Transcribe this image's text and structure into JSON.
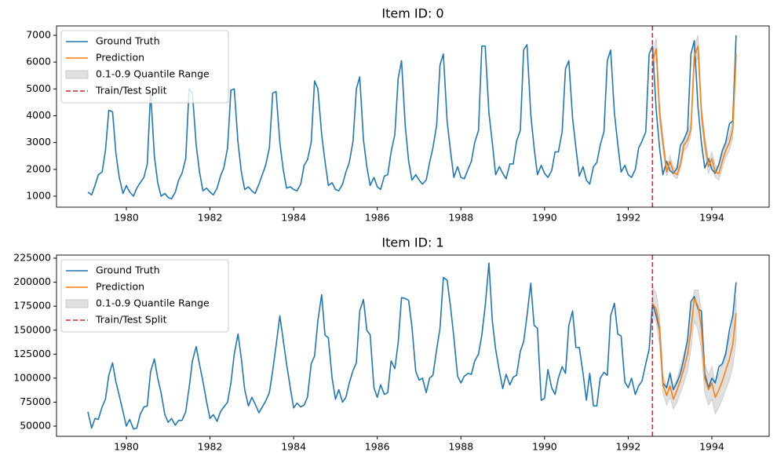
{
  "chart_data": [
    {
      "type": "line",
      "title": "Item ID: 0",
      "legend": "upper left",
      "xlim": [
        1978.33,
        1995.37
      ],
      "ylim": [
        590,
        7350
      ],
      "xticks": [
        1980,
        1982,
        1984,
        1986,
        1988,
        1990,
        1992,
        1994
      ],
      "yticks": [
        1000,
        2000,
        3000,
        4000,
        5000,
        6000,
        7000
      ],
      "x": [
        1979.08,
        1979.17,
        1979.25,
        1979.33,
        1979.42,
        1979.5,
        1979.58,
        1979.67,
        1979.75,
        1979.83,
        1979.92,
        1980,
        1980.08,
        1980.17,
        1980.25,
        1980.33,
        1980.42,
        1980.5,
        1980.58,
        1980.67,
        1980.75,
        1980.83,
        1980.92,
        1981,
        1981.08,
        1981.17,
        1981.25,
        1981.33,
        1981.42,
        1981.5,
        1981.58,
        1981.67,
        1981.75,
        1981.83,
        1981.92,
        1982,
        1982.08,
        1982.17,
        1982.25,
        1982.33,
        1982.42,
        1982.5,
        1982.58,
        1982.67,
        1982.75,
        1982.83,
        1982.92,
        1983,
        1983.08,
        1983.17,
        1983.25,
        1983.33,
        1983.42,
        1983.5,
        1983.58,
        1983.67,
        1983.75,
        1983.83,
        1983.92,
        1984,
        1984.08,
        1984.17,
        1984.25,
        1984.33,
        1984.42,
        1984.5,
        1984.58,
        1984.67,
        1984.75,
        1984.83,
        1984.92,
        1985,
        1985.08,
        1985.17,
        1985.25,
        1985.33,
        1985.42,
        1985.5,
        1985.58,
        1985.67,
        1985.75,
        1985.83,
        1985.92,
        1986,
        1986.08,
        1986.17,
        1986.25,
        1986.33,
        1986.42,
        1986.5,
        1986.58,
        1986.67,
        1986.75,
        1986.83,
        1986.92,
        1987,
        1987.08,
        1987.17,
        1987.25,
        1987.33,
        1987.42,
        1987.5,
        1987.58,
        1987.67,
        1987.75,
        1987.83,
        1987.92,
        1988,
        1988.08,
        1988.17,
        1988.25,
        1988.33,
        1988.42,
        1988.5,
        1988.58,
        1988.67,
        1988.75,
        1988.83,
        1988.92,
        1989,
        1989.08,
        1989.17,
        1989.25,
        1989.33,
        1989.42,
        1989.5,
        1989.58,
        1989.67,
        1989.75,
        1989.83,
        1989.92,
        1990,
        1990.08,
        1990.17,
        1990.25,
        1990.33,
        1990.42,
        1990.5,
        1990.58,
        1990.67,
        1990.75,
        1990.83,
        1990.92,
        1991,
        1991.08,
        1991.17,
        1991.25,
        1991.33,
        1991.42,
        1991.5,
        1991.58,
        1991.67,
        1991.75,
        1991.83,
        1991.92,
        1992,
        1992.08,
        1992.17,
        1992.25,
        1992.33,
        1992.42,
        1992.5,
        1992.58,
        1992.67,
        1992.75,
        1992.83,
        1992.92,
        1993,
        1993.08,
        1993.17,
        1993.25,
        1993.33,
        1993.42,
        1993.5,
        1993.58,
        1993.67,
        1993.75,
        1993.83,
        1993.92,
        1994,
        1994.08,
        1994.17,
        1994.25,
        1994.33,
        1994.42,
        1994.5,
        1994.58
      ],
      "series": [
        {
          "name": "Ground Truth",
          "color": "#1f77b4",
          "values": [
            1150,
            1050,
            1400,
            1800,
            1900,
            2700,
            4200,
            4150,
            2600,
            1700,
            1100,
            1400,
            1150,
            1000,
            1300,
            1500,
            1700,
            2200,
            4900,
            2500,
            1500,
            1000,
            1100,
            950,
            900,
            1150,
            1600,
            1850,
            2400,
            5000,
            4850,
            2900,
            1900,
            1200,
            1300,
            1150,
            1050,
            1300,
            1750,
            2050,
            2800,
            4950,
            5000,
            3000,
            1900,
            1250,
            1350,
            1200,
            1100,
            1450,
            1800,
            2150,
            2800,
            4850,
            4900,
            3000,
            2000,
            1300,
            1350,
            1250,
            1200,
            1450,
            2150,
            2350,
            3000,
            5300,
            5000,
            3300,
            2300,
            1400,
            1500,
            1250,
            1200,
            1450,
            1900,
            2250,
            3050,
            5000,
            5450,
            3100,
            2100,
            1400,
            1700,
            1350,
            1250,
            1750,
            1800,
            2650,
            3300,
            5400,
            6050,
            3600,
            2300,
            1600,
            1800,
            1600,
            1450,
            1600,
            2250,
            2800,
            3650,
            5900,
            6300,
            3800,
            2700,
            1700,
            2100,
            1700,
            1650,
            2000,
            2300,
            3000,
            3450,
            6600,
            6600,
            4100,
            3000,
            1800,
            2100,
            1850,
            1650,
            2200,
            2200,
            3050,
            3450,
            6450,
            6650,
            4050,
            2800,
            1800,
            2150,
            1850,
            1700,
            1950,
            2650,
            2650,
            3400,
            5750,
            6050,
            3900,
            2800,
            1750,
            2100,
            1600,
            1450,
            2100,
            2250,
            2900,
            3400,
            6050,
            6450,
            4100,
            2950,
            1900,
            2150,
            1800,
            1700,
            2000,
            2800,
            3050,
            3400,
            6300,
            6600,
            4200,
            2800,
            1800,
            2300,
            1950,
            1850,
            2050,
            2900,
            3100,
            3450,
            6300,
            6800,
            4300,
            3000,
            2050,
            2400,
            2000,
            1850,
            2200,
            2700,
            3000,
            3700,
            3800,
            7000
          ]
        },
        {
          "name": "Prediction",
          "color": "#ff7f0e",
          "x": [
            1992.58,
            1992.67,
            1992.75,
            1992.83,
            1992.92,
            1993,
            1993.08,
            1993.17,
            1993.25,
            1993.33,
            1993.42,
            1993.5,
            1993.58,
            1993.67,
            1993.75,
            1993.83,
            1993.92,
            1994,
            1994.08,
            1994.17,
            1994.25,
            1994.33,
            1994.42,
            1994.5,
            1994.58
          ],
          "values": [
            6000,
            6500,
            4100,
            3000,
            1900,
            2300,
            1900,
            1800,
            2200,
            2900,
            3100,
            3500,
            6200,
            6600,
            4100,
            3000,
            2100,
            2400,
            1900,
            1850,
            2300,
            2700,
            3000,
            3500,
            6300
          ]
        }
      ],
      "band": {
        "name": "0.1-0.9 Quantile Range",
        "color": "#e0e0e0",
        "lower": [
          5700,
          6100,
          3800,
          2750,
          1750,
          2100,
          1750,
          1650,
          2000,
          2650,
          2850,
          3250,
          5800,
          6200,
          3800,
          2700,
          1850,
          2150,
          1700,
          1600,
          2050,
          2450,
          2700,
          3200,
          5900
        ],
        "upper": [
          6300,
          6900,
          4400,
          3250,
          2100,
          2500,
          2100,
          2000,
          2400,
          3150,
          3350,
          3800,
          6600,
          7000,
          4400,
          3300,
          2300,
          2650,
          2150,
          2100,
          2550,
          2950,
          3300,
          3800,
          6700
        ]
      },
      "vline": {
        "name": "Train/Test Split",
        "color": "#d62728",
        "x": 1992.58
      }
    },
    {
      "type": "line",
      "title": "Item ID: 1",
      "legend": "upper left",
      "xlim": [
        1978.33,
        1995.37
      ],
      "ylim": [
        39400,
        228300
      ],
      "xticks": [
        1980,
        1982,
        1984,
        1986,
        1988,
        1990,
        1992,
        1994
      ],
      "yticks": [
        50000,
        75000,
        100000,
        125000,
        150000,
        175000,
        200000,
        225000
      ],
      "x": [
        1979.08,
        1979.17,
        1979.25,
        1979.33,
        1979.42,
        1979.5,
        1979.58,
        1979.67,
        1979.75,
        1979.83,
        1979.92,
        1980,
        1980.08,
        1980.17,
        1980.25,
        1980.33,
        1980.42,
        1980.5,
        1980.58,
        1980.67,
        1980.75,
        1980.83,
        1980.92,
        1981,
        1981.08,
        1981.17,
        1981.25,
        1981.33,
        1981.42,
        1981.5,
        1981.58,
        1981.67,
        1981.75,
        1981.83,
        1981.92,
        1982,
        1982.08,
        1982.17,
        1982.25,
        1982.33,
        1982.42,
        1982.5,
        1982.58,
        1982.67,
        1982.75,
        1982.83,
        1982.92,
        1983,
        1983.08,
        1983.17,
        1983.25,
        1983.33,
        1983.42,
        1983.5,
        1983.58,
        1983.67,
        1983.75,
        1983.83,
        1983.92,
        1984,
        1984.08,
        1984.17,
        1984.25,
        1984.33,
        1984.42,
        1984.5,
        1984.58,
        1984.67,
        1984.75,
        1984.83,
        1984.92,
        1985,
        1985.08,
        1985.17,
        1985.25,
        1985.33,
        1985.42,
        1985.5,
        1985.58,
        1985.67,
        1985.75,
        1985.83,
        1985.92,
        1986,
        1986.08,
        1986.17,
        1986.25,
        1986.33,
        1986.42,
        1986.5,
        1986.58,
        1986.67,
        1986.75,
        1986.83,
        1986.92,
        1987,
        1987.08,
        1987.17,
        1987.25,
        1987.33,
        1987.42,
        1987.5,
        1987.58,
        1987.67,
        1987.75,
        1987.83,
        1987.92,
        1988,
        1988.08,
        1988.17,
        1988.25,
        1988.33,
        1988.42,
        1988.5,
        1988.58,
        1988.67,
        1988.75,
        1988.83,
        1988.92,
        1989,
        1989.08,
        1989.17,
        1989.25,
        1989.33,
        1989.42,
        1989.5,
        1989.58,
        1989.67,
        1989.75,
        1989.83,
        1989.92,
        1990,
        1990.08,
        1990.17,
        1990.25,
        1990.33,
        1990.42,
        1990.5,
        1990.58,
        1990.67,
        1990.75,
        1990.83,
        1990.92,
        1991,
        1991.08,
        1991.17,
        1991.25,
        1991.33,
        1991.42,
        1991.5,
        1991.58,
        1991.67,
        1991.75,
        1991.83,
        1991.92,
        1992,
        1992.08,
        1992.17,
        1992.25,
        1992.33,
        1992.42,
        1992.5,
        1992.58,
        1992.67,
        1992.75,
        1992.83,
        1992.92,
        1993,
        1993.08,
        1993.17,
        1993.25,
        1993.33,
        1993.42,
        1993.5,
        1993.58,
        1993.67,
        1993.75,
        1993.83,
        1993.92,
        1994,
        1994.08,
        1994.17,
        1994.25,
        1994.33,
        1994.42,
        1994.5,
        1994.58
      ],
      "series": [
        {
          "name": "Ground Truth",
          "color": "#1f77b4",
          "values": [
            65000,
            48000,
            58000,
            57000,
            70000,
            78000,
            103000,
            116000,
            96000,
            82000,
            65000,
            50000,
            57000,
            47000,
            48000,
            62000,
            70000,
            71000,
            107000,
            120000,
            100000,
            85000,
            62000,
            54000,
            58000,
            51000,
            56000,
            56000,
            65000,
            90000,
            118000,
            133000,
            114000,
            97000,
            75000,
            58000,
            62000,
            55000,
            65000,
            70000,
            75000,
            95000,
            125000,
            146000,
            120000,
            88000,
            71000,
            80000,
            73000,
            64000,
            70000,
            76000,
            85000,
            108000,
            134000,
            165000,
            140000,
            115000,
            90000,
            69000,
            74000,
            70000,
            72000,
            80000,
            115000,
            123000,
            160000,
            187000,
            145000,
            142000,
            100000,
            78000,
            88000,
            75000,
            80000,
            95000,
            108000,
            116000,
            170000,
            182000,
            150000,
            145000,
            90000,
            80000,
            93000,
            83000,
            85000,
            118000,
            110000,
            137000,
            184000,
            183000,
            181000,
            153000,
            107000,
            98000,
            100000,
            85000,
            100000,
            103000,
            130000,
            152000,
            205000,
            202000,
            175000,
            143000,
            102000,
            95000,
            102000,
            105000,
            104000,
            118000,
            125000,
            145000,
            175000,
            220000,
            160000,
            130000,
            107000,
            89000,
            104000,
            93000,
            101000,
            103000,
            128000,
            138000,
            165000,
            199000,
            155000,
            152000,
            77000,
            79000,
            109000,
            90000,
            83000,
            100000,
            112000,
            105000,
            155000,
            170000,
            132000,
            132000,
            105000,
            77000,
            105000,
            71000,
            71000,
            100000,
            106000,
            103000,
            165000,
            178000,
            146000,
            144000,
            96000,
            90000,
            100000,
            83000,
            92000,
            97000,
            115000,
            130000,
            178000,
            165000,
            150000,
            95000,
            90000,
            105000,
            88000,
            96000,
            105000,
            120000,
            140000,
            180000,
            185000,
            172000,
            170000,
            105000,
            90000,
            100000,
            95000,
            112000,
            115000,
            125000,
            150000,
            165000,
            200000
          ]
        },
        {
          "name": "Prediction",
          "color": "#ff7f0e",
          "x": [
            1992.58,
            1992.67,
            1992.75,
            1992.83,
            1992.92,
            1993,
            1993.08,
            1993.17,
            1993.25,
            1993.33,
            1993.42,
            1993.5,
            1993.58,
            1993.67,
            1993.75,
            1993.83,
            1993.92,
            1994,
            1994.08,
            1994.17,
            1994.25,
            1994.33,
            1994.42,
            1994.5,
            1994.58
          ],
          "values": [
            178000,
            172000,
            152000,
            93000,
            82000,
            92000,
            78000,
            88000,
            98000,
            110000,
            125000,
            150000,
            183000,
            175000,
            152000,
            100000,
            88000,
            95000,
            80000,
            88000,
            97000,
            108000,
            120000,
            135000,
            168000
          ]
        }
      ],
      "band": {
        "name": "0.1-0.9 Quantile Range",
        "color": "#e0e0e0",
        "lower": [
          165000,
          158000,
          135000,
          85000,
          72000,
          80000,
          68000,
          75000,
          85000,
          95000,
          108000,
          130000,
          160000,
          150000,
          130000,
          85000,
          72000,
          78000,
          63000,
          70000,
          78000,
          88000,
          98000,
          112000,
          140000
        ],
        "upper": [
          195000,
          188000,
          165000,
          103000,
          92000,
          107000,
          90000,
          100000,
          112000,
          125000,
          142000,
          170000,
          192000,
          192000,
          170000,
          115000,
          103000,
          112000,
          95000,
          105000,
          115000,
          128000,
          142000,
          158000,
          185000
        ]
      },
      "vline": {
        "name": "Train/Test Split",
        "color": "#d62728",
        "x": 1992.58
      }
    }
  ]
}
